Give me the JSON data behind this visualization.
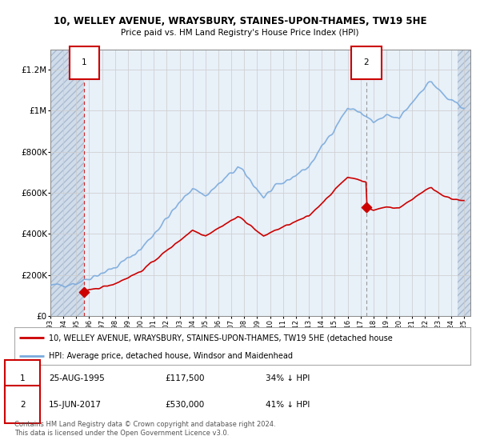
{
  "title_line1": "10, WELLEY AVENUE, WRAYSBURY, STAINES-UPON-THAMES, TW19 5HE",
  "title_line2": "Price paid vs. HM Land Registry's House Price Index (HPI)",
  "ylim": [
    0,
    1300000
  ],
  "yticks": [
    0,
    200000,
    400000,
    600000,
    800000,
    1000000,
    1200000
  ],
  "ytick_labels": [
    "£0",
    "£200K",
    "£400K",
    "£600K",
    "£800K",
    "£1M",
    "£1.2M"
  ],
  "xstart_year": 1993,
  "xend_year": 2025,
  "sale1_year": 1995.63,
  "sale1_price": 117500,
  "sale2_year": 2017.45,
  "sale2_price": 530000,
  "legend_line1": "10, WELLEY AVENUE, WRAYSBURY, STAINES-UPON-THAMES, TW19 5HE (detached house",
  "legend_line2": "HPI: Average price, detached house, Windsor and Maidenhead",
  "footer": "Contains HM Land Registry data © Crown copyright and database right 2024.\nThis data is licensed under the Open Government Licence v3.0.",
  "hpi_color": "#7aaadd",
  "sale_color": "#cc0000",
  "grid_color": "#cccccc",
  "plot_bg": "#ddeeff",
  "hatch_color": "#bbccdd"
}
